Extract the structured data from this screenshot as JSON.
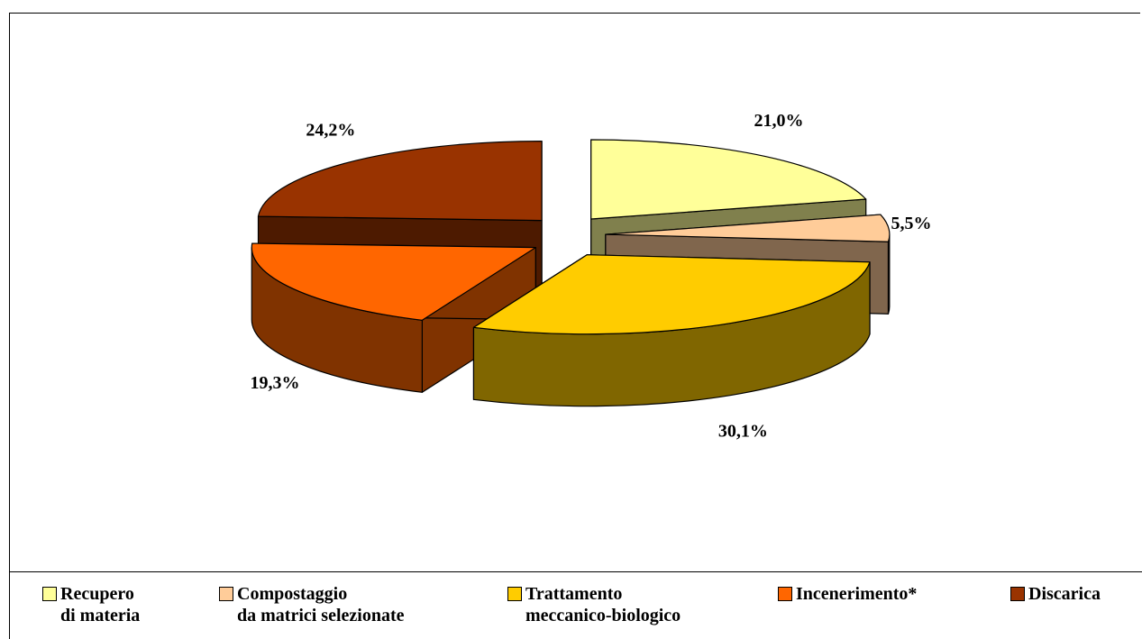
{
  "chart_data": {
    "type": "pie3d",
    "categories": [
      "Recupero\ndi materia",
      "Compostaggio\nda matrici selezionate",
      "Trattamento\nmeccanico-biologico",
      "Incenerimento*",
      "Discarica"
    ],
    "values": [
      21.0,
      5.5,
      30.1,
      19.3,
      24.2
    ],
    "value_labels": [
      "21,0%",
      "5,5%",
      "30,1%",
      "19,3%",
      "24,2%"
    ],
    "colors": [
      "#FFFF99",
      "#FFCC99",
      "#FFCC00",
      "#FF6600",
      "#993300"
    ],
    "legend": "bottom"
  }
}
